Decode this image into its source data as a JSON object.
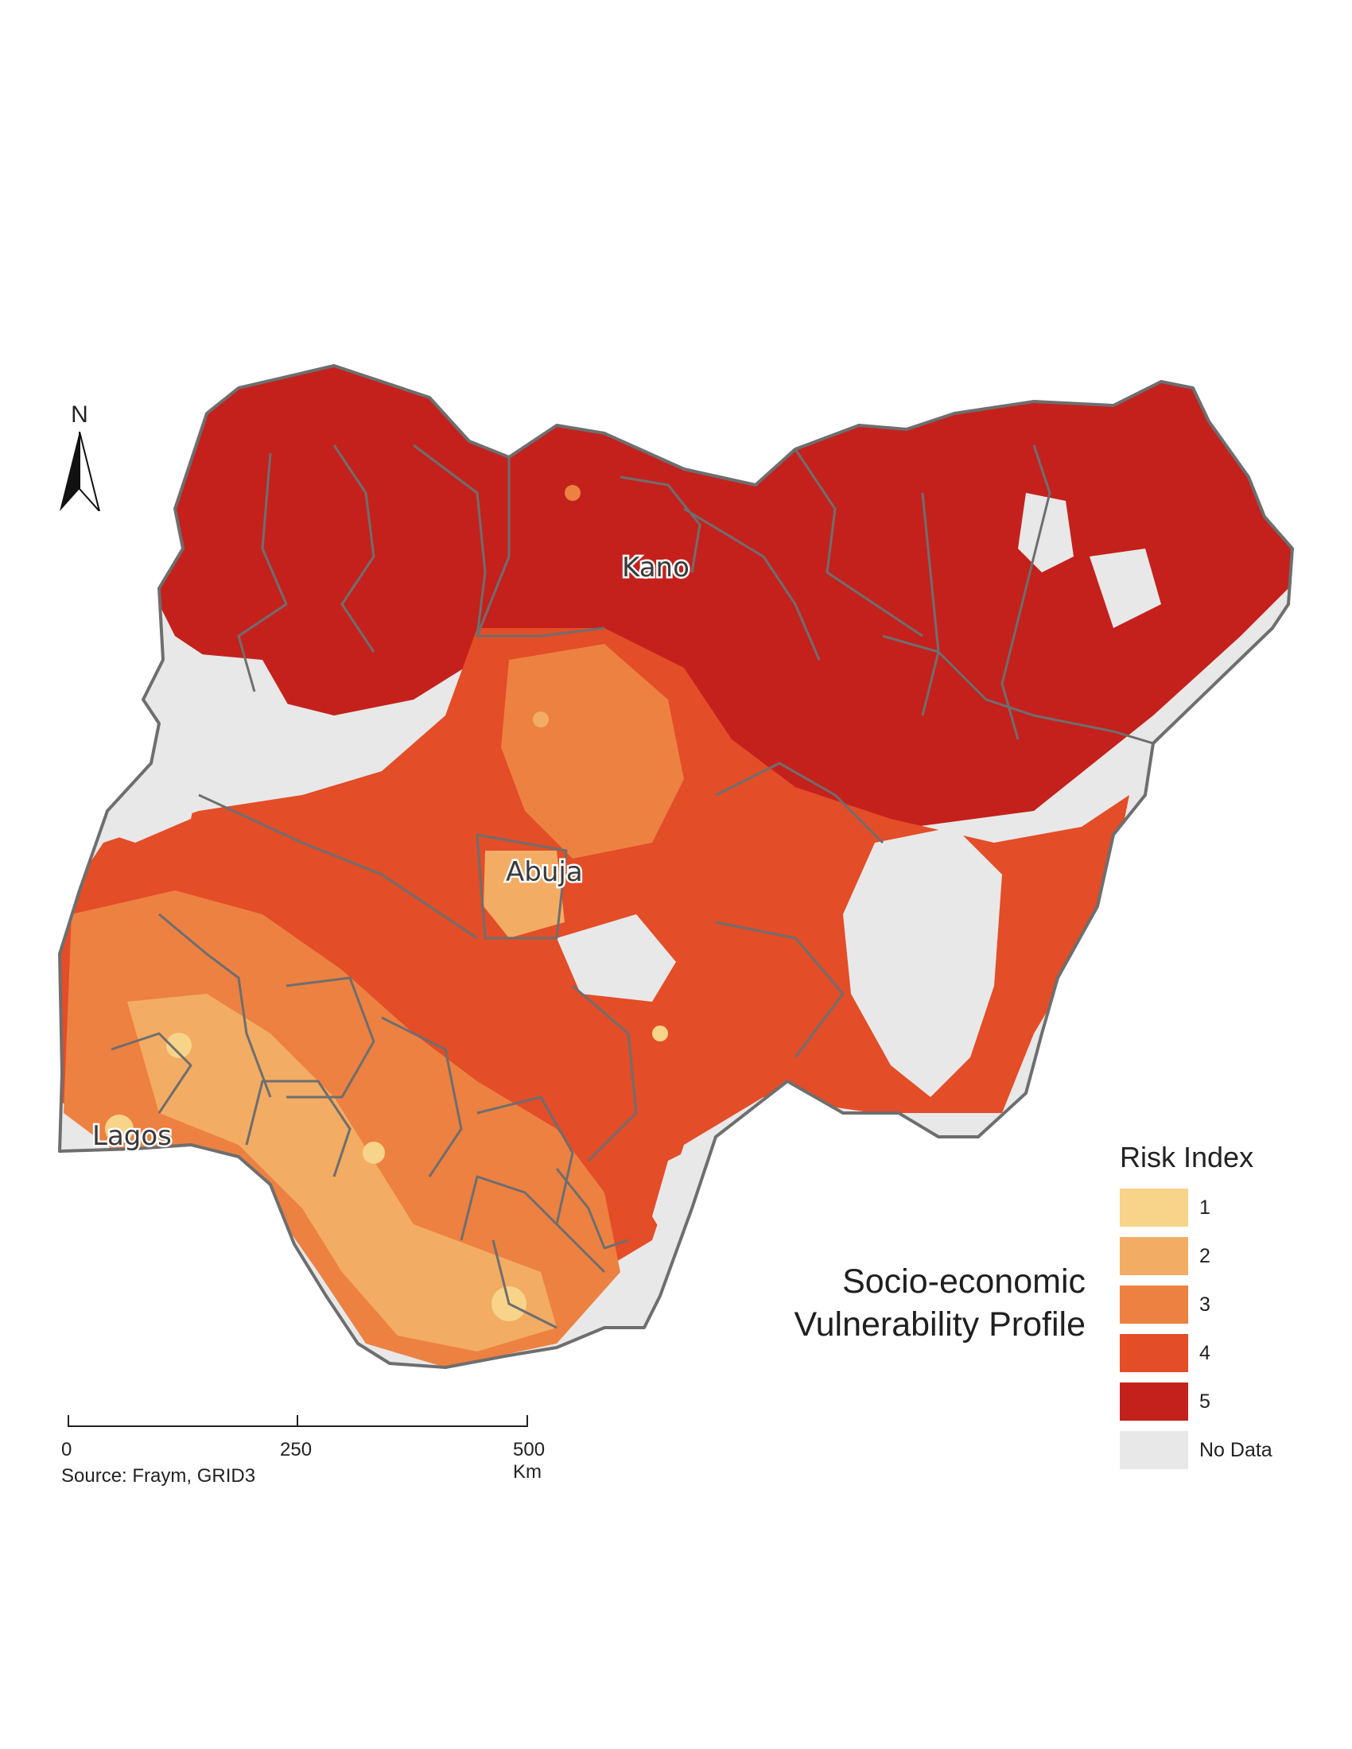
{
  "map": {
    "cities": [
      {
        "name": "Kano"
      },
      {
        "name": "Abuja"
      },
      {
        "name": "Lagos"
      }
    ],
    "north_arrow": {
      "label": "N",
      "icon": "north-arrow-icon"
    }
  },
  "title": {
    "line1": "Socio-economic",
    "line2": "Vulnerability Profile"
  },
  "legend": {
    "title": "Risk Index",
    "items": [
      {
        "label": "1",
        "color": "#f7d48a"
      },
      {
        "label": "2",
        "color": "#f3ac64"
      },
      {
        "label": "3",
        "color": "#ed8142"
      },
      {
        "label": "4",
        "color": "#e34d27"
      },
      {
        "label": "5",
        "color": "#c4211d"
      },
      {
        "label": "No Data",
        "color": "#e8e8e8"
      }
    ]
  },
  "scalebar": {
    "ticks": [
      "0",
      "250",
      "500 Km"
    ]
  },
  "source": "Source: Fraym, GRID3",
  "colors": {
    "boundary": "#6e6e6e",
    "no_data": "#e8e8e8"
  }
}
